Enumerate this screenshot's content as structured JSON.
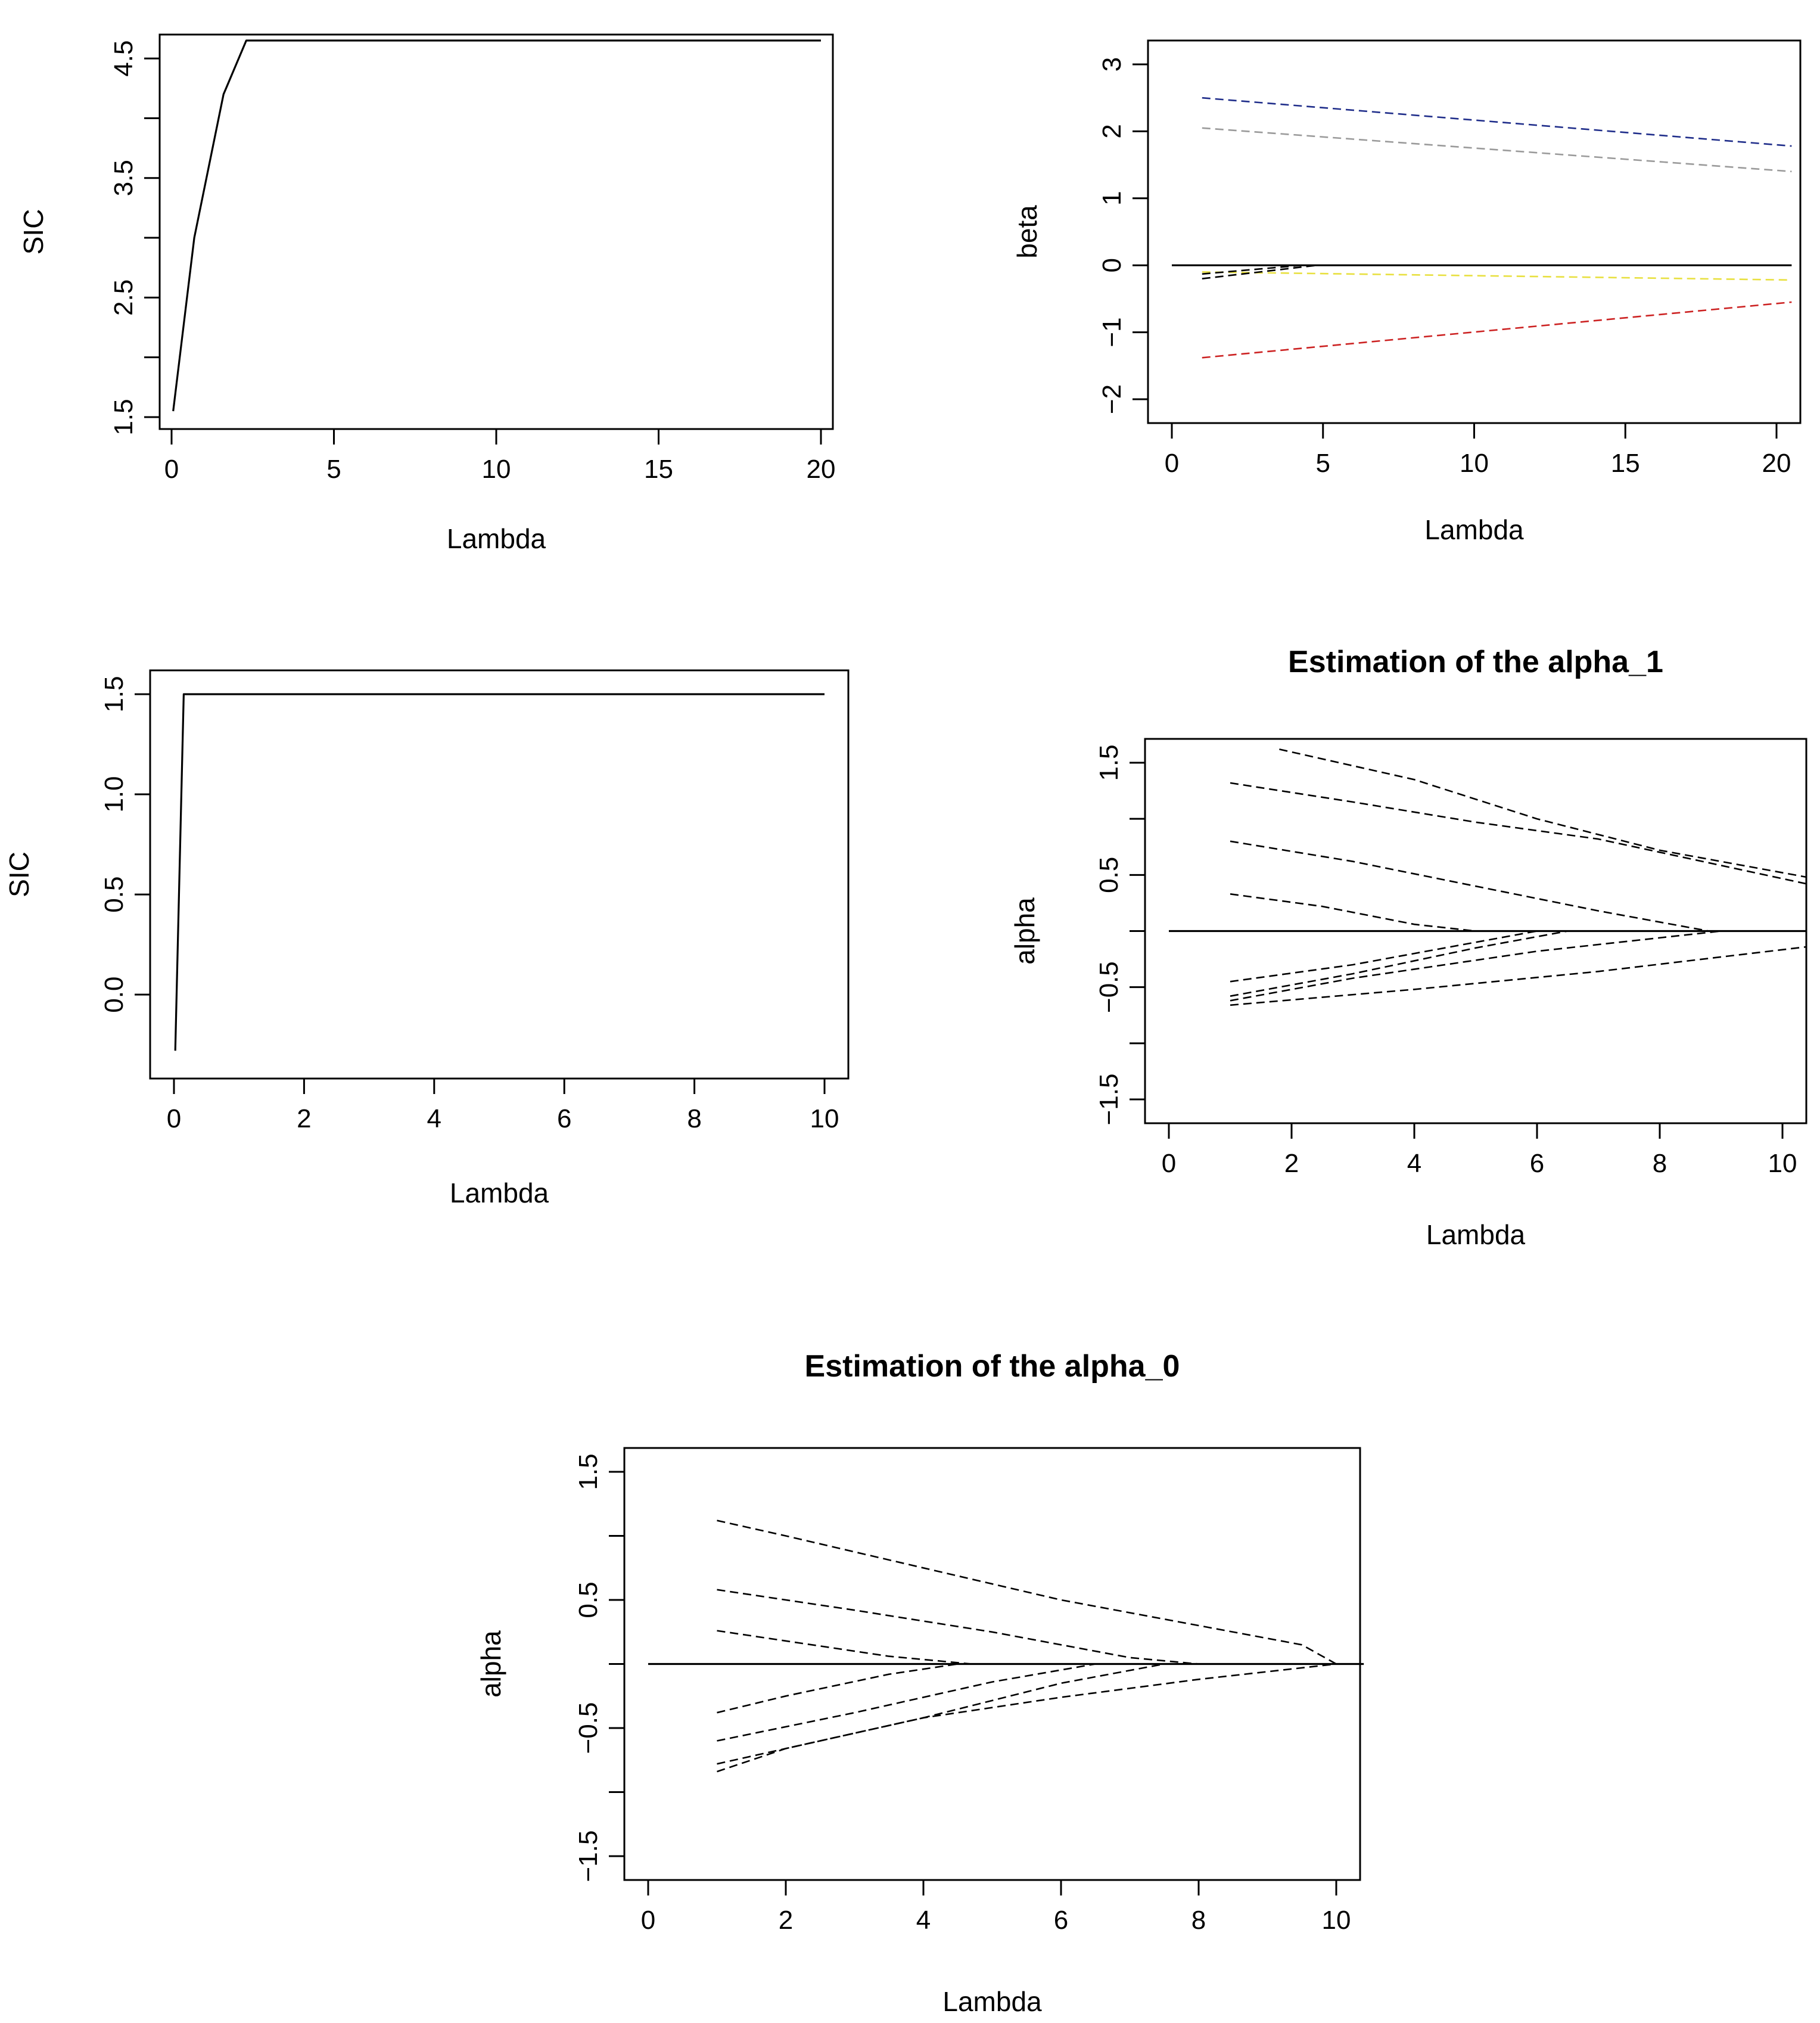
{
  "chart_data": [
    {
      "id": "sic-top",
      "type": "line",
      "title": "",
      "xlabel": "Lambda",
      "ylabel": "SIC",
      "xlim": [
        0,
        20
      ],
      "ylim": [
        1.5,
        4.6
      ],
      "xticks": [
        0,
        5,
        10,
        15,
        20
      ],
      "xtick_labels": [
        "0",
        "5",
        "10",
        "15",
        "20"
      ],
      "yticks": [
        1.5,
        2.0,
        2.5,
        3.0,
        3.5,
        4.0,
        4.5
      ],
      "ytick_labels": [
        "1.5",
        "",
        "2.5",
        "",
        "3.5",
        "",
        "4.5"
      ],
      "series": [
        {
          "name": "SIC",
          "dash": false,
          "color": "#000000",
          "x": [
            0.05,
            0.7,
            1.6,
            2.3,
            20
          ],
          "y": [
            1.55,
            3.0,
            4.2,
            4.65,
            4.65
          ]
        }
      ]
    },
    {
      "id": "beta",
      "type": "line",
      "title": "",
      "xlabel": "Lambda",
      "ylabel": "beta",
      "xlim": [
        0,
        20
      ],
      "ylim": [
        -2,
        3
      ],
      "xticks": [
        0,
        5,
        10,
        15,
        20
      ],
      "xtick_labels": [
        "0",
        "5",
        "10",
        "15",
        "20"
      ],
      "yticks": [
        -2,
        -1,
        0,
        1,
        2,
        3
      ],
      "ytick_labels": [
        "−2",
        "−1",
        "0",
        "1",
        "2",
        "3"
      ],
      "series": [
        {
          "name": "zero",
          "dash": false,
          "color": "#000000",
          "x": [
            0,
            20.5
          ],
          "y": [
            0,
            0
          ]
        },
        {
          "name": "beta-1",
          "dash": true,
          "color": "#1f2d8a",
          "x": [
            1,
            20.5
          ],
          "y": [
            2.5,
            1.78
          ]
        },
        {
          "name": "beta-2",
          "dash": true,
          "color": "#9a9a9a",
          "x": [
            1,
            20.5
          ],
          "y": [
            2.05,
            1.4
          ]
        },
        {
          "name": "beta-3",
          "dash": true,
          "color": "#e8e040",
          "x": [
            1,
            20.5
          ],
          "y": [
            -0.1,
            -0.22
          ]
        },
        {
          "name": "beta-4",
          "dash": true,
          "color": "#000000",
          "x": [
            1,
            4.8
          ],
          "y": [
            -0.2,
            0
          ]
        },
        {
          "name": "beta-5",
          "dash": true,
          "color": "#000000",
          "x": [
            1,
            4.3
          ],
          "y": [
            -0.13,
            0
          ]
        },
        {
          "name": "beta-6",
          "dash": true,
          "color": "#cc2222",
          "x": [
            1,
            20.5
          ],
          "y": [
            -1.38,
            -0.55
          ]
        }
      ]
    },
    {
      "id": "sic-middle",
      "type": "line",
      "title": "",
      "xlabel": "Lambda",
      "ylabel": "SIC",
      "xlim": [
        0,
        10
      ],
      "ylim": [
        -0.3,
        1.5
      ],
      "xticks": [
        0,
        2,
        4,
        6,
        8,
        10
      ],
      "xtick_labels": [
        "0",
        "2",
        "4",
        "6",
        "8",
        "10"
      ],
      "yticks": [
        0.0,
        0.5,
        1.0,
        1.5
      ],
      "ytick_labels": [
        "0.0",
        "0.5",
        "1.0",
        "1.5"
      ],
      "series": [
        {
          "name": "SIC",
          "dash": false,
          "color": "#000000",
          "x": [
            0.02,
            0.15,
            10
          ],
          "y": [
            -0.28,
            1.5,
            1.5
          ]
        }
      ]
    },
    {
      "id": "alpha1",
      "type": "line",
      "title": "Estimation of the alpha_1",
      "xlabel": "Lambda",
      "ylabel": "alpha",
      "xlim": [
        0,
        10
      ],
      "ylim": [
        -1.5,
        1.5
      ],
      "xticks": [
        0,
        2,
        4,
        6,
        8,
        10
      ],
      "xtick_labels": [
        "0",
        "2",
        "4",
        "6",
        "8",
        "10"
      ],
      "yticks": [
        -1.5,
        -1.0,
        -0.5,
        0.0,
        0.5,
        1.0,
        1.5
      ],
      "ytick_labels": [
        "−1.5",
        "",
        "−0.5",
        "",
        "0.5",
        "",
        "1.5"
      ],
      "series": [
        {
          "name": "zero",
          "dash": false,
          "color": "#000000",
          "x": [
            0,
            10.4
          ],
          "y": [
            0,
            0
          ]
        },
        {
          "name": "a1-1",
          "dash": true,
          "color": "#000000",
          "x": [
            1.8,
            4,
            6,
            8,
            10.4
          ],
          "y": [
            1.62,
            1.35,
            1.0,
            0.72,
            0.48
          ]
        },
        {
          "name": "a1-2",
          "dash": true,
          "color": "#000000",
          "x": [
            1,
            3,
            5,
            7,
            10.4
          ],
          "y": [
            1.32,
            1.15,
            0.97,
            0.82,
            0.42
          ]
        },
        {
          "name": "a1-3",
          "dash": true,
          "color": "#000000",
          "x": [
            1,
            3,
            5,
            7,
            8.8
          ],
          "y": [
            0.8,
            0.62,
            0.4,
            0.18,
            0
          ]
        },
        {
          "name": "a1-4",
          "dash": true,
          "color": "#000000",
          "x": [
            1,
            2.5,
            4,
            5
          ],
          "y": [
            0.33,
            0.22,
            0.06,
            0
          ]
        },
        {
          "name": "a1-5",
          "dash": true,
          "color": "#000000",
          "x": [
            1,
            1.5
          ],
          "y": [
            0,
            0
          ]
        },
        {
          "name": "a1-6",
          "dash": true,
          "color": "#000000",
          "x": [
            1,
            3,
            5,
            6
          ],
          "y": [
            -0.45,
            -0.3,
            -0.1,
            0
          ]
        },
        {
          "name": "a1-7",
          "dash": true,
          "color": "#000000",
          "x": [
            1,
            3,
            5,
            6.5
          ],
          "y": [
            -0.58,
            -0.38,
            -0.15,
            0
          ]
        },
        {
          "name": "a1-8",
          "dash": true,
          "color": "#000000",
          "x": [
            1,
            3,
            6,
            9
          ],
          "y": [
            -0.62,
            -0.42,
            -0.18,
            0
          ]
        },
        {
          "name": "a1-9",
          "dash": true,
          "color": "#000000",
          "x": [
            1,
            4,
            7,
            10.4
          ],
          "y": [
            -0.66,
            -0.52,
            -0.36,
            -0.14
          ]
        }
      ]
    },
    {
      "id": "alpha0",
      "type": "line",
      "title": "Estimation of the alpha_0",
      "xlabel": "Lambda",
      "ylabel": "alpha",
      "xlim": [
        0,
        10
      ],
      "ylim": [
        -1.5,
        1.5
      ],
      "xticks": [
        0,
        2,
        4,
        6,
        8,
        10
      ],
      "xtick_labels": [
        "0",
        "2",
        "4",
        "6",
        "8",
        "10"
      ],
      "yticks": [
        -1.5,
        -1.0,
        -0.5,
        0.0,
        0.5,
        1.0,
        1.5
      ],
      "ytick_labels": [
        "−1.5",
        "",
        "−0.5",
        "",
        "0.5",
        "",
        "1.5"
      ],
      "series": [
        {
          "name": "zero",
          "dash": false,
          "color": "#000000",
          "x": [
            0,
            10.4
          ],
          "y": [
            0,
            0
          ]
        },
        {
          "name": "a0-1",
          "dash": true,
          "color": "#000000",
          "x": [
            1,
            2,
            4,
            6,
            8,
            9.5,
            10
          ],
          "y": [
            1.12,
            1.0,
            0.75,
            0.5,
            0.3,
            0.15,
            0
          ]
        },
        {
          "name": "a0-2",
          "dash": true,
          "color": "#000000",
          "x": [
            1,
            3,
            5,
            7,
            8
          ],
          "y": [
            0.58,
            0.42,
            0.25,
            0.05,
            0
          ]
        },
        {
          "name": "a0-3",
          "dash": true,
          "color": "#000000",
          "x": [
            1,
            2,
            3.5,
            4.7
          ],
          "y": [
            0.26,
            0.18,
            0.06,
            0
          ]
        },
        {
          "name": "a0-4",
          "dash": true,
          "color": "#000000",
          "x": [
            1,
            2,
            3.5,
            4.5
          ],
          "y": [
            -0.38,
            -0.25,
            -0.08,
            0
          ]
        },
        {
          "name": "a0-5",
          "dash": true,
          "color": "#000000",
          "x": [
            1,
            3,
            5,
            6.5
          ],
          "y": [
            -0.6,
            -0.38,
            -0.14,
            0
          ]
        },
        {
          "name": "a0-6",
          "dash": true,
          "color": "#000000",
          "x": [
            1,
            2,
            4,
            6,
            7.5
          ],
          "y": [
            -0.78,
            -0.66,
            -0.42,
            -0.15,
            0
          ]
        },
        {
          "name": "a0-7",
          "dash": true,
          "color": "#000000",
          "x": [
            1,
            2,
            4,
            6,
            8,
            10
          ],
          "y": [
            -0.84,
            -0.66,
            -0.42,
            -0.26,
            -0.12,
            0
          ]
        }
      ]
    }
  ]
}
